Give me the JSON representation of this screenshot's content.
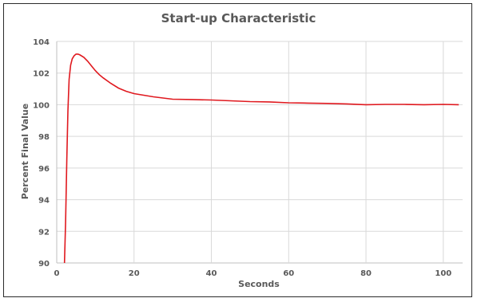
{
  "chart_data": {
    "type": "line",
    "title": "Start-up Characteristic",
    "xlabel": "Seconds",
    "ylabel": "Percent Final Value",
    "xlim": [
      0,
      105
    ],
    "ylim": [
      90,
      104
    ],
    "x_ticks": [
      0,
      20,
      40,
      60,
      80,
      100
    ],
    "y_ticks": [
      90,
      92,
      94,
      96,
      98,
      100,
      102,
      104
    ],
    "grid": true,
    "line_color": "#e0191f",
    "series": [
      {
        "x": [
          2,
          2.3,
          2.6,
          2.9,
          3.2,
          3.6,
          4,
          4.5,
          5,
          5.5,
          6,
          7,
          8,
          9,
          10,
          11,
          12,
          14,
          16,
          18,
          20,
          25,
          30,
          35,
          40,
          45,
          50,
          55,
          60,
          65,
          70,
          75,
          80,
          85,
          90,
          95,
          100,
          104
        ],
        "values": [
          90,
          92.6,
          96.5,
          99.6,
          101.6,
          102.5,
          102.9,
          103.1,
          103.2,
          103.2,
          103.15,
          103.0,
          102.75,
          102.45,
          102.15,
          101.9,
          101.7,
          101.35,
          101.05,
          100.85,
          100.7,
          100.5,
          100.35,
          100.33,
          100.3,
          100.25,
          100.2,
          100.18,
          100.12,
          100.1,
          100.08,
          100.05,
          100.0,
          100.02,
          100.02,
          100.0,
          100.02,
          100.0
        ]
      }
    ]
  }
}
